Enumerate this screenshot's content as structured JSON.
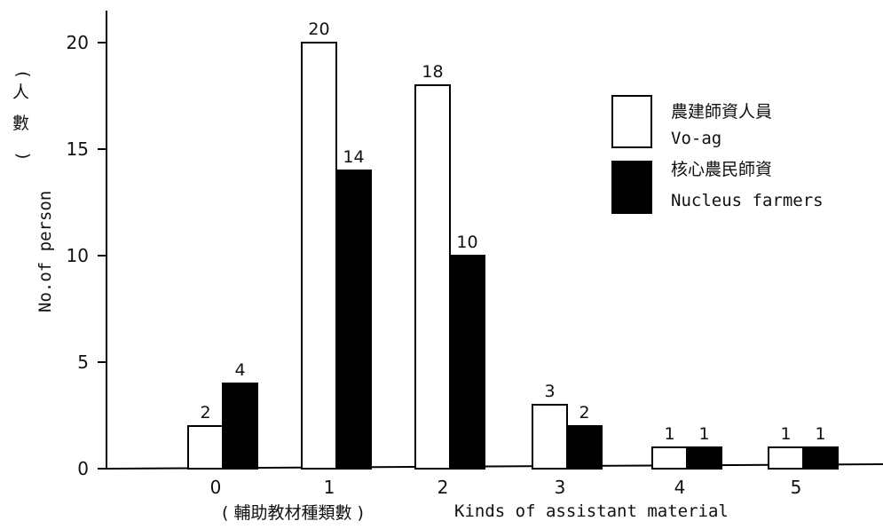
{
  "chart_data": {
    "type": "bar",
    "categories": [
      "0",
      "1",
      "2",
      "3",
      "4",
      "5"
    ],
    "series": [
      {
        "name": "農建師資人員 Vo-ag",
        "values": [
          2,
          20,
          18,
          3,
          1,
          1
        ],
        "color": "#ffffff"
      },
      {
        "name": "核心農民師資 Nucleus farmers",
        "values": [
          4,
          14,
          10,
          2,
          1,
          1
        ],
        "color": "#000000"
      }
    ],
    "legend": [
      {
        "label_cn": "農建師資人員",
        "label_en": "Vo-ag",
        "fill": "#ffffff"
      },
      {
        "label_cn": "核心農民師資",
        "label_en": "Nucleus farmers",
        "fill": "#000000"
      }
    ],
    "yticks": [
      "0",
      "5",
      "10",
      "15",
      "20"
    ],
    "ylabel_cn": "( 人 數 )",
    "ylabel_en": "No.of person",
    "xlabel_cn": "( 輔助教材種類數 )",
    "xlabel_en": "Kinds of assistant material",
    "ylim": [
      0,
      22
    ],
    "legend_position": "top-right",
    "grid": false
  }
}
